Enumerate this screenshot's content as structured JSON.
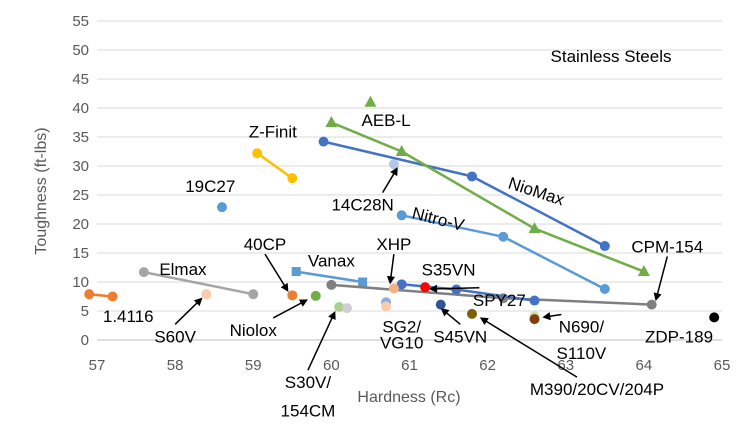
{
  "chart_data": {
    "type": "scatter",
    "title": "",
    "annotation": "Stainless Steels",
    "xlabel": "Hardness (Rc)",
    "ylabel": "Toughness (ft-lbs)",
    "xlim": [
      57,
      65
    ],
    "ylim": [
      0,
      55
    ],
    "x_ticks": [
      57,
      58,
      59,
      60,
      61,
      62,
      63,
      64,
      65
    ],
    "y_ticks": [
      0,
      5,
      10,
      15,
      20,
      25,
      30,
      35,
      40,
      45,
      50,
      55
    ],
    "grid": "horizontal",
    "legend": "none",
    "series": [
      {
        "id": "niomax",
        "color": "#4472C4",
        "line": true,
        "marker": "circle",
        "points": [
          {
            "x": 59.9,
            "y": 34.2
          },
          {
            "x": 61.8,
            "y": 28.2
          },
          {
            "x": 63.5,
            "y": 16.2
          }
        ]
      },
      {
        "id": "aebl",
        "color": "#70AD47",
        "line": true,
        "marker": "triangle",
        "points": [
          {
            "x": 60.0,
            "y": 37.5
          },
          {
            "x": 60.9,
            "y": 32.5
          },
          {
            "x": 62.6,
            "y": 19.2
          },
          {
            "x": 64.0,
            "y": 11.8
          }
        ]
      },
      {
        "id": "aebl-top",
        "color": "#70AD47",
        "line": false,
        "marker": "triangle",
        "points": [
          {
            "x": 60.5,
            "y": 41.0
          }
        ]
      },
      {
        "id": "nitrov",
        "color": "#5B9BD5",
        "line": true,
        "marker": "circle",
        "points": [
          {
            "x": 60.9,
            "y": 21.5
          },
          {
            "x": 62.2,
            "y": 17.8
          },
          {
            "x": 63.5,
            "y": 8.8
          }
        ]
      },
      {
        "id": "zfinit",
        "color": "#FFC000",
        "line": true,
        "marker": "circle",
        "points": [
          {
            "x": 59.05,
            "y": 32.2
          },
          {
            "x": 59.5,
            "y": 27.9
          }
        ]
      },
      {
        "id": "19c27",
        "color": "#5B9BD5",
        "line": false,
        "marker": "circle",
        "points": [
          {
            "x": 58.6,
            "y": 22.9
          }
        ]
      },
      {
        "id": "14c28n",
        "color": "#B4C7E7",
        "line": false,
        "marker": "circle",
        "points": [
          {
            "x": 60.8,
            "y": 30.3
          }
        ]
      },
      {
        "id": "vanax",
        "color": "#5B9BD5",
        "line": true,
        "marker": "square",
        "points": [
          {
            "x": 59.55,
            "y": 11.8
          },
          {
            "x": 60.4,
            "y": 10.0
          }
        ]
      },
      {
        "id": "elmax",
        "color": "#A5A5A5",
        "line": true,
        "marker": "circle",
        "points": [
          {
            "x": 57.6,
            "y": 11.7
          },
          {
            "x": 59.0,
            "y": 7.9
          }
        ]
      },
      {
        "id": "cpm154",
        "color": "#7F7F7F",
        "line": true,
        "marker": "circle",
        "points": [
          {
            "x": 60.0,
            "y": 9.5
          },
          {
            "x": 62.2,
            "y": 7.2
          },
          {
            "x": 64.1,
            "y": 6.1
          }
        ]
      },
      {
        "id": "s35vn",
        "color": "#4472C4",
        "line": true,
        "marker": "circle",
        "points": [
          {
            "x": 60.9,
            "y": 9.6
          },
          {
            "x": 61.6,
            "y": 8.7
          },
          {
            "x": 62.6,
            "y": 6.8
          }
        ]
      },
      {
        "id": "14116",
        "color": "#ED7D31",
        "line": true,
        "marker": "circle",
        "points": [
          {
            "x": 56.9,
            "y": 7.9
          },
          {
            "x": 57.2,
            "y": 7.5
          }
        ]
      },
      {
        "id": "s60v",
        "color": "#F8CBAD",
        "line": false,
        "marker": "circle",
        "points": [
          {
            "x": 58.4,
            "y": 7.9
          }
        ]
      },
      {
        "id": "40cp",
        "color": "#ED7D31",
        "line": false,
        "marker": "circle",
        "points": [
          {
            "x": 59.5,
            "y": 7.7
          }
        ]
      },
      {
        "id": "niolox",
        "color": "#70AD47",
        "line": false,
        "marker": "circle",
        "points": [
          {
            "x": 59.8,
            "y": 7.6
          }
        ]
      },
      {
        "id": "s30v",
        "color": "#A9D18E",
        "line": false,
        "marker": "circle",
        "points": [
          {
            "x": 60.1,
            "y": 5.7
          }
        ]
      },
      {
        "id": "s30v-b",
        "color": "#D0CECE",
        "line": false,
        "marker": "circle",
        "points": [
          {
            "x": 60.2,
            "y": 5.5
          }
        ]
      },
      {
        "id": "xhp",
        "color": "#F4B183",
        "line": false,
        "marker": "circle",
        "points": [
          {
            "x": 60.8,
            "y": 8.9
          }
        ]
      },
      {
        "id": "s35vn-red",
        "color": "#FF0000",
        "line": false,
        "marker": "circle",
        "points": [
          {
            "x": 61.2,
            "y": 9.1
          }
        ]
      },
      {
        "id": "sg2",
        "color": "#8FAADC",
        "line": false,
        "marker": "circle",
        "points": [
          {
            "x": 60.7,
            "y": 6.5
          }
        ]
      },
      {
        "id": "vg10",
        "color": "#F8CBAD",
        "line": false,
        "marker": "circle",
        "points": [
          {
            "x": 60.7,
            "y": 5.8
          }
        ]
      },
      {
        "id": "s45vn",
        "color": "#2F5597",
        "line": false,
        "marker": "circle",
        "points": [
          {
            "x": 61.4,
            "y": 6.1
          }
        ]
      },
      {
        "id": "m390",
        "color": "#7F6000",
        "line": false,
        "marker": "circle",
        "points": [
          {
            "x": 61.8,
            "y": 4.5
          }
        ]
      },
      {
        "id": "n690",
        "color": "#C5E0B4",
        "line": false,
        "marker": "circle",
        "points": [
          {
            "x": 62.6,
            "y": 4.1
          }
        ]
      },
      {
        "id": "s110v",
        "color": "#843C0C",
        "line": false,
        "marker": "circle",
        "points": [
          {
            "x": 62.6,
            "y": 3.6
          }
        ]
      },
      {
        "id": "zdp189",
        "color": "#000000",
        "line": false,
        "marker": "circle",
        "points": [
          {
            "x": 64.9,
            "y": 3.9
          }
        ]
      }
    ],
    "labels": [
      {
        "text": "Z-Finit",
        "lx": 59.25,
        "ly": 34.9,
        "anchor": "middle"
      },
      {
        "text": "AEB-L",
        "lx": 60.7,
        "ly": 36.9,
        "anchor": "middle"
      },
      {
        "text": "19C27",
        "lx": 58.45,
        "ly": 25.5,
        "anchor": "middle"
      },
      {
        "text": "14C28N",
        "lx": 60.4,
        "ly": 22.3,
        "anchor": "middle",
        "arrow": [
          60.85,
          29.8
        ]
      },
      {
        "text": "NioMax",
        "lx": 62.6,
        "ly": 24.7,
        "anchor": "middle",
        "rotate": 18
      },
      {
        "text": "Nitro-V",
        "lx": 61.35,
        "ly": 19.9,
        "anchor": "middle",
        "rotate": 14
      },
      {
        "text": "CPM-154",
        "lx": 64.3,
        "ly": 15.1,
        "anchor": "middle",
        "arrow": [
          64.15,
          6.7
        ]
      },
      {
        "text": "40CP",
        "lx": 59.15,
        "ly": 15.5,
        "anchor": "middle",
        "arrow": [
          59.45,
          8.3
        ]
      },
      {
        "text": "Vanax",
        "lx": 60.0,
        "ly": 12.7,
        "anchor": "middle"
      },
      {
        "text": "XHP",
        "lx": 60.8,
        "ly": 15.5,
        "anchor": "middle",
        "arrow": [
          60.75,
          9.6
        ]
      },
      {
        "text": "S35VN",
        "lx": 61.5,
        "ly": 11.1,
        "anchor": "middle"
      },
      {
        "text": "SPY27",
        "lx": 62.15,
        "ly": 5.9,
        "anchor": "middle",
        "arrow": [
          61.25,
          8.8
        ]
      },
      {
        "text": "Elmax",
        "lx": 58.1,
        "ly": 11.2,
        "anchor": "middle"
      },
      {
        "text": "1.4116",
        "lx": 57.4,
        "ly": 3.1,
        "anchor": "middle"
      },
      {
        "text": "S60V",
        "lx": 58.0,
        "ly": -0.4,
        "anchor": "middle",
        "arrow": [
          58.35,
          7.3
        ]
      },
      {
        "text": "Niolox",
        "lx": 59.0,
        "ly": 0.7,
        "anchor": "middle",
        "arrow": [
          59.7,
          7.0
        ]
      },
      {
        "text": "SG2/",
        "lx": 60.9,
        "ly": 1.3,
        "anchor": "middle"
      },
      {
        "text": "VG10",
        "lx": 60.9,
        "ly": -1.5,
        "anchor": "middle"
      },
      {
        "text": "S45VN",
        "lx": 61.65,
        "ly": -0.4,
        "anchor": "middle",
        "arrow": [
          61.4,
          5.5
        ]
      },
      {
        "text": "N690/",
        "lx": 63.2,
        "ly": 1.3,
        "anchor": "middle",
        "arrow": [
          62.7,
          3.9
        ]
      },
      {
        "text": "S110V",
        "lx": 63.2,
        "ly": -3.3,
        "anchor": "middle"
      },
      {
        "text": "ZDP-189",
        "lx": 64.45,
        "ly": -0.4,
        "anchor": "middle"
      },
      {
        "text": "S30V/",
        "lx": 59.7,
        "ly": -8.3,
        "anchor": "middle",
        "arrow": [
          60.05,
          5.0
        ]
      },
      {
        "text": "154CM",
        "lx": 59.7,
        "ly": -13.2,
        "anchor": "middle"
      },
      {
        "text": "M390/20CV/204P",
        "lx": 63.4,
        "ly": -9.5,
        "anchor": "middle",
        "arrow": [
          61.9,
          3.9
        ]
      }
    ]
  }
}
